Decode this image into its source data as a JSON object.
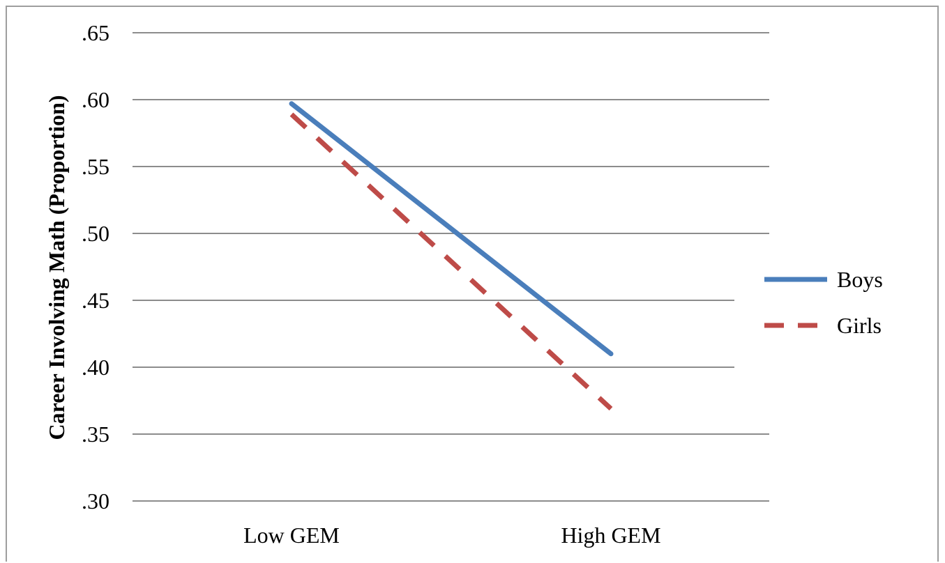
{
  "chart_data": {
    "type": "line",
    "title": "",
    "xlabel": "",
    "ylabel": "Career Involving Math (Proportion)",
    "categories": [
      "Low GEM",
      "High GEM"
    ],
    "ylim": [
      0.3,
      0.65
    ],
    "yticks": [
      {
        "value": 0.3,
        "label": ".30"
      },
      {
        "value": 0.35,
        "label": ".35"
      },
      {
        "value": 0.4,
        "label": ".40"
      },
      {
        "value": 0.45,
        "label": ".45"
      },
      {
        "value": 0.5,
        "label": ".50"
      },
      {
        "value": 0.55,
        "label": ".55"
      },
      {
        "value": 0.6,
        "label": ".60"
      },
      {
        "value": 0.65,
        "label": ".65"
      }
    ],
    "grid": true,
    "legend_position": "right",
    "series": [
      {
        "name": "Boys",
        "values": [
          0.597,
          0.41
        ],
        "color": "#4a7ebb",
        "dash": "solid"
      },
      {
        "name": "Girls",
        "values": [
          0.589,
          0.369
        ],
        "color": "#be4b48",
        "dash": "dashed"
      }
    ]
  }
}
